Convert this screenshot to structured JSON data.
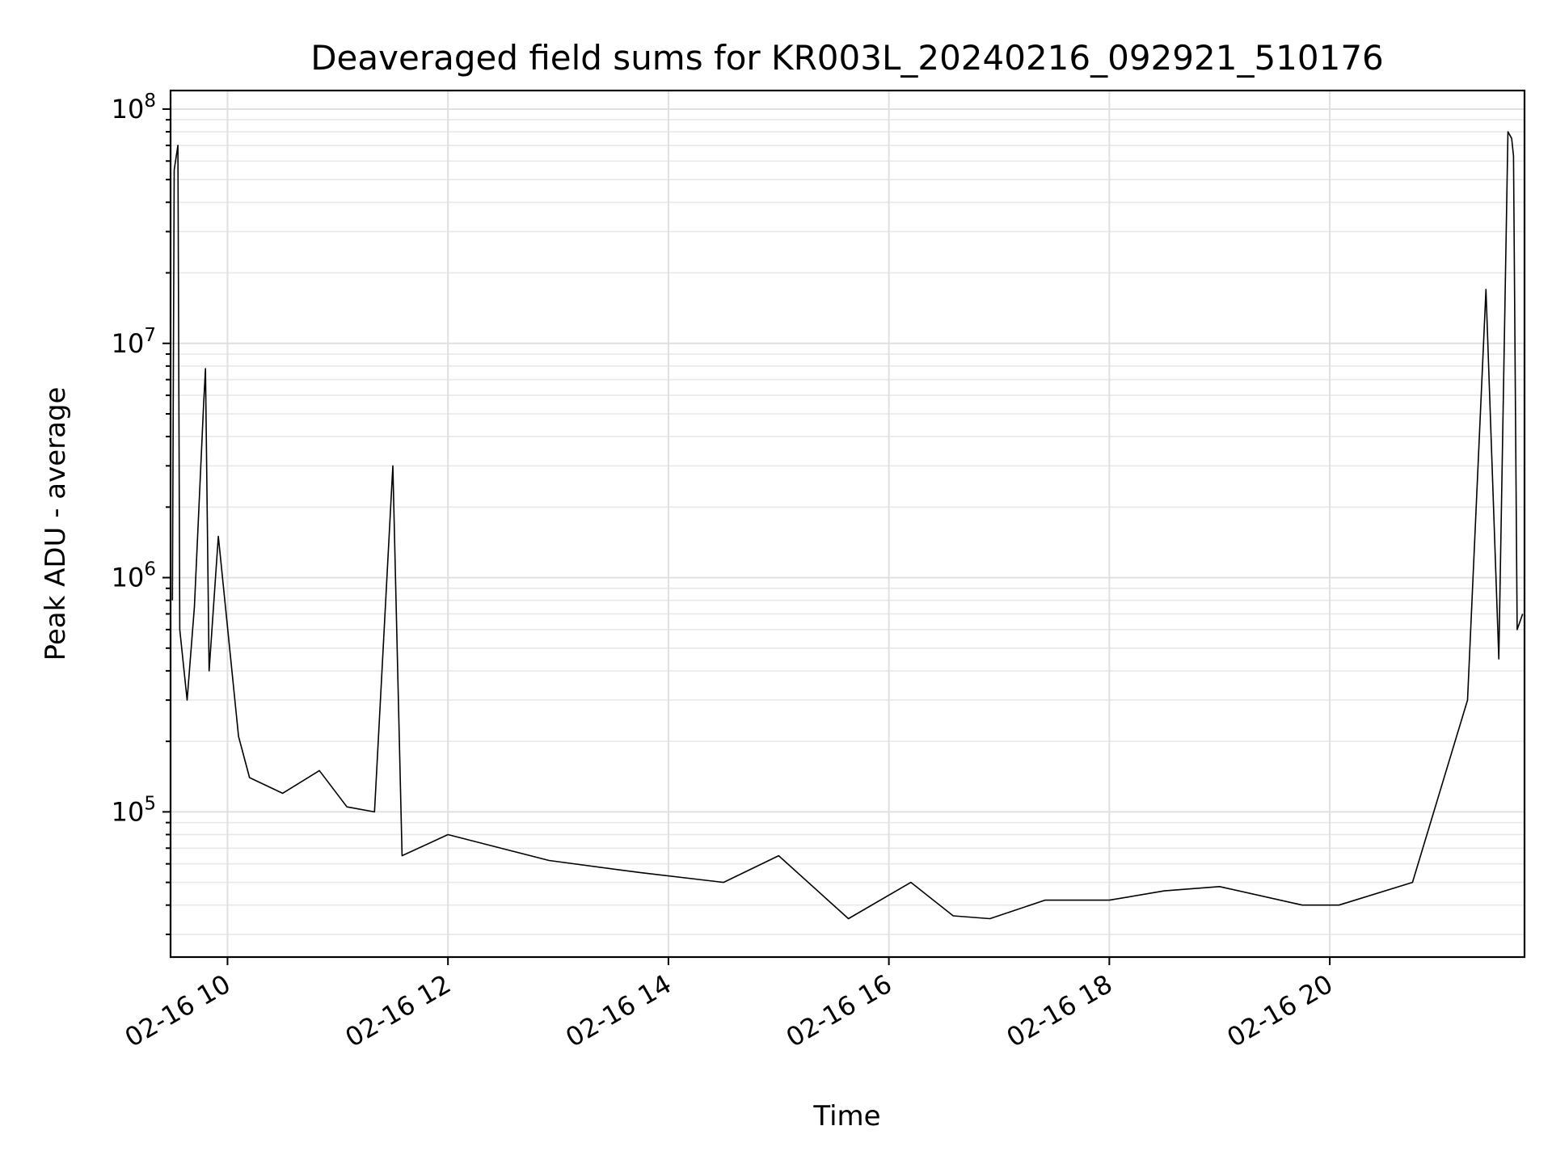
{
  "chart_data": {
    "type": "line",
    "title": "Deaveraged field sums for KR003L_20240216_092921_510176",
    "xlabel": "Time",
    "ylabel": "Peak ADU - average",
    "yscale": "log",
    "ylim": [
      24000,
      120000000
    ],
    "xlim": [
      "2024-02-16 09:29",
      "2024-02-16 21:46"
    ],
    "grid": true,
    "line_color": "#000000",
    "x_ticks": [
      {
        "label": "02-16 10",
        "time": "2024-02-16 10:00"
      },
      {
        "label": "02-16 12",
        "time": "2024-02-16 12:00"
      },
      {
        "label": "02-16 14",
        "time": "2024-02-16 14:00"
      },
      {
        "label": "02-16 16",
        "time": "2024-02-16 16:00"
      },
      {
        "label": "02-16 18",
        "time": "2024-02-16 18:00"
      },
      {
        "label": "02-16 20",
        "time": "2024-02-16 20:00"
      }
    ],
    "y_ticks": [
      {
        "base": "10",
        "exp": "5",
        "value": 100000
      },
      {
        "base": "10",
        "exp": "6",
        "value": 1000000
      },
      {
        "base": "10",
        "exp": "7",
        "value": 10000000
      },
      {
        "base": "10",
        "exp": "8",
        "value": 100000000
      }
    ],
    "series": [
      {
        "values": [
          [
            "2024-02-16 09:30",
            800000
          ],
          [
            "2024-02-16 09:31",
            55000000
          ],
          [
            "2024-02-16 09:33",
            70000000
          ],
          [
            "2024-02-16 09:34",
            600000
          ],
          [
            "2024-02-16 09:38",
            300000
          ],
          [
            "2024-02-16 09:42",
            750000
          ],
          [
            "2024-02-16 09:47",
            5500000
          ],
          [
            "2024-02-16 09:48",
            7800000
          ],
          [
            "2024-02-16 09:50",
            400000
          ],
          [
            "2024-02-16 09:55",
            1500000
          ],
          [
            "2024-02-16 10:06",
            210000
          ],
          [
            "2024-02-16 10:12",
            140000
          ],
          [
            "2024-02-16 10:30",
            120000
          ],
          [
            "2024-02-16 10:50",
            150000
          ],
          [
            "2024-02-16 11:05",
            105000
          ],
          [
            "2024-02-16 11:20",
            100000
          ],
          [
            "2024-02-16 11:30",
            3000000
          ],
          [
            "2024-02-16 11:35",
            65000
          ],
          [
            "2024-02-16 12:00",
            80000
          ],
          [
            "2024-02-16 12:35",
            68000
          ],
          [
            "2024-02-16 12:55",
            62000
          ],
          [
            "2024-02-16 13:45",
            55000
          ],
          [
            "2024-02-16 14:30",
            50000
          ],
          [
            "2024-02-16 15:00",
            65000
          ],
          [
            "2024-02-16 15:38",
            35000
          ],
          [
            "2024-02-16 16:12",
            50000
          ],
          [
            "2024-02-16 16:35",
            36000
          ],
          [
            "2024-02-16 16:55",
            35000
          ],
          [
            "2024-02-16 17:25",
            42000
          ],
          [
            "2024-02-16 18:00",
            42000
          ],
          [
            "2024-02-16 18:30",
            46000
          ],
          [
            "2024-02-16 19:00",
            48000
          ],
          [
            "2024-02-16 19:45",
            40000
          ],
          [
            "2024-02-16 20:05",
            40000
          ],
          [
            "2024-02-16 20:45",
            50000
          ],
          [
            "2024-02-16 21:15",
            300000
          ],
          [
            "2024-02-16 21:25",
            17000000
          ],
          [
            "2024-02-16 21:32",
            450000
          ],
          [
            "2024-02-16 21:37",
            80000000
          ],
          [
            "2024-02-16 21:39",
            75000000
          ],
          [
            "2024-02-16 21:40",
            63000000
          ],
          [
            "2024-02-16 21:42",
            600000
          ],
          [
            "2024-02-16 21:45",
            700000
          ]
        ]
      }
    ]
  }
}
